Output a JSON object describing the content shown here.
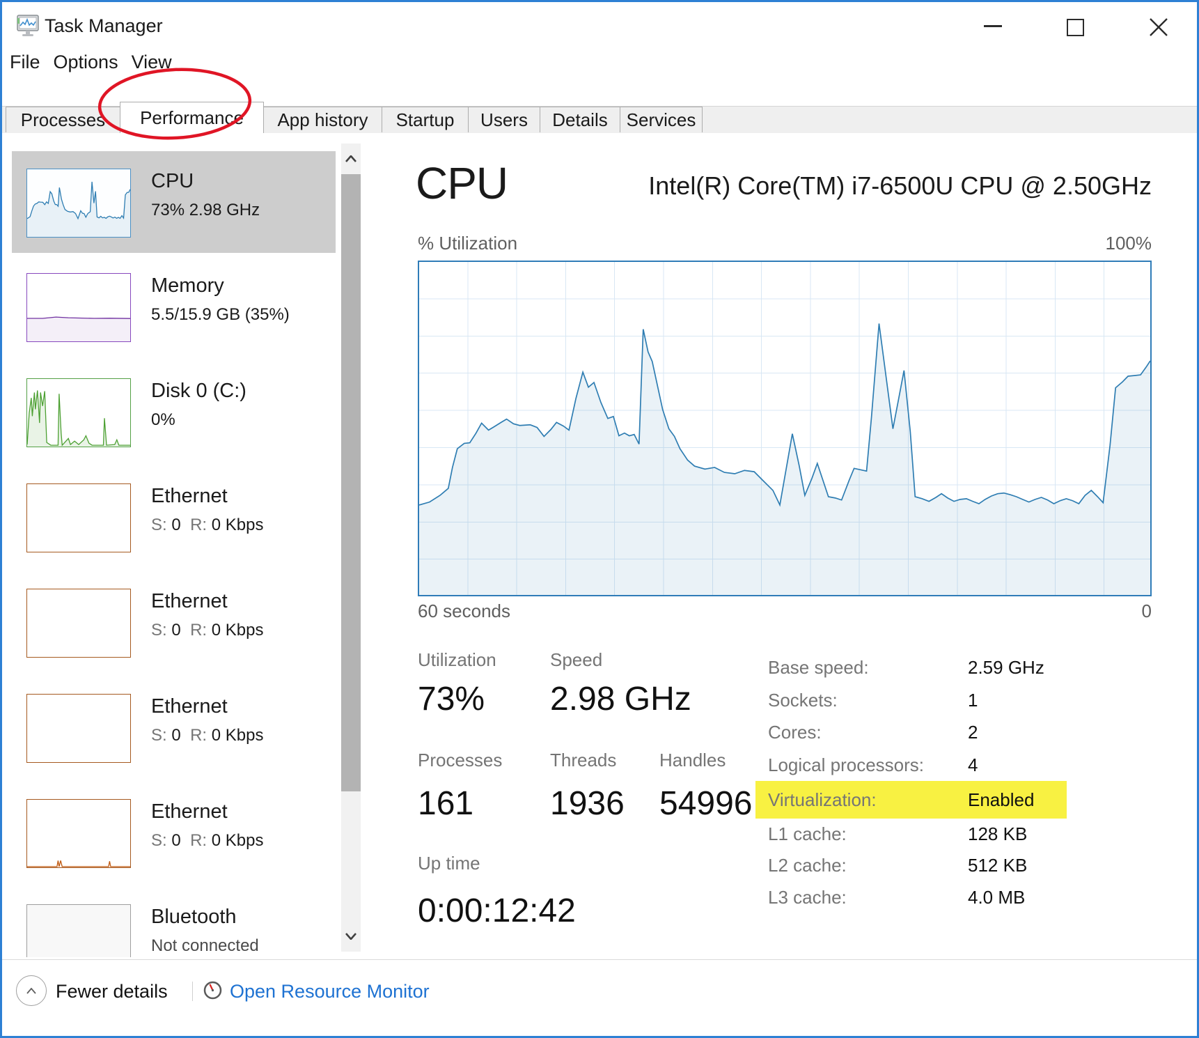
{
  "window": {
    "title": "Task Manager",
    "controls": {
      "minimize": "minimize",
      "maximize": "maximize",
      "close": "close"
    }
  },
  "menu": {
    "items": [
      "File",
      "Options",
      "View"
    ]
  },
  "tabs": {
    "active": "Performance",
    "items": [
      "Processes",
      "Performance",
      "App history",
      "Startup",
      "Users",
      "Details",
      "Services"
    ]
  },
  "sidebar": {
    "items": [
      {
        "id": "cpu",
        "title": "CPU",
        "subtitle": "73% 2.98 GHz",
        "selected": true
      },
      {
        "id": "memory",
        "title": "Memory",
        "subtitle": "5.5/15.9 GB (35%)",
        "selected": false
      },
      {
        "id": "disk",
        "title": "Disk 0 (C:)",
        "subtitle": "0%",
        "selected": false
      },
      {
        "id": "ethernet-1",
        "title": "Ethernet",
        "ss": "S:",
        "sv": "0",
        "rs": "R:",
        "rv": "0 Kbps",
        "selected": false
      },
      {
        "id": "ethernet-2",
        "title": "Ethernet",
        "ss": "S:",
        "sv": "0",
        "rs": "R:",
        "rv": "0 Kbps",
        "selected": false
      },
      {
        "id": "ethernet-3",
        "title": "Ethernet",
        "ss": "S:",
        "sv": "0",
        "rs": "R:",
        "rv": "0 Kbps",
        "selected": false
      },
      {
        "id": "ethernet-4",
        "title": "Ethernet",
        "ss": "S:",
        "sv": "0",
        "rs": "R:",
        "rv": "0 Kbps",
        "selected": false
      },
      {
        "id": "bluetooth",
        "title": "Bluetooth",
        "subtitle": "Not connected",
        "selected": false
      }
    ]
  },
  "main": {
    "title": "CPU",
    "subtitle": "Intel(R) Core(TM) i7-6500U CPU @ 2.50GHz",
    "y_axis_label": "% Utilization",
    "y_max_label": "100%",
    "x_left_label": "60 seconds",
    "x_right_label": "0",
    "stats_left": [
      {
        "label": "Utilization",
        "value": "73%"
      },
      {
        "label": "Speed",
        "value": "2.98 GHz"
      },
      {
        "label": "Processes",
        "value": "161"
      },
      {
        "label": "Threads",
        "value": "1936"
      },
      {
        "label": "Handles",
        "value": "54996"
      },
      {
        "label": "Up time",
        "value": "0:00:12:42"
      }
    ],
    "stats_right": [
      {
        "label": "Base speed:",
        "value": "2.59 GHz",
        "highlight": false
      },
      {
        "label": "Sockets:",
        "value": "1",
        "highlight": false
      },
      {
        "label": "Cores:",
        "value": "2",
        "highlight": false
      },
      {
        "label": "Logical processors:",
        "value": "4",
        "highlight": false
      },
      {
        "label": "Virtualization:",
        "value": "Enabled",
        "highlight": true
      },
      {
        "label": "L1 cache:",
        "value": "128 KB",
        "highlight": false
      },
      {
        "label": "L2 cache:",
        "value": "512 KB",
        "highlight": false
      },
      {
        "label": "L3 cache:",
        "value": "4.0 MB",
        "highlight": false
      }
    ]
  },
  "footer": {
    "fewer_details": "Fewer details",
    "open_resource_monitor": "Open Resource Monitor"
  },
  "colors": {
    "accent_blue": "#2e7db2",
    "grid_blue": "#d8e7f4",
    "chart_border": "#2f7cb8",
    "highlight_yellow": "#f8f142",
    "link_blue": "#1e72d2",
    "selected_gray": "#cdcdcd",
    "annotation_red": "#e01525",
    "memory_purple": "#7030a0",
    "disk_green": "#4ca032",
    "ethernet_brown": "#c05a11"
  },
  "chart_data": {
    "type": "area",
    "title": "CPU % Utilization history",
    "xlabel": "60 seconds (left) to 0 (right)",
    "ylabel": "% Utilization",
    "ylim": [
      0,
      100
    ],
    "grid": {
      "columns": 15,
      "rows": 9
    },
    "current_utilization_pct": 73,
    "points": [
      [
        0,
        27
      ],
      [
        15,
        27.9
      ],
      [
        30,
        29.9
      ],
      [
        42,
        32
      ],
      [
        48,
        38.3
      ],
      [
        55,
        43.9
      ],
      [
        65,
        45.5
      ],
      [
        73,
        45.7
      ],
      [
        82,
        48.6
      ],
      [
        90,
        51.6
      ],
      [
        100,
        49.5
      ],
      [
        108,
        50.5
      ],
      [
        118,
        51.8
      ],
      [
        126,
        52.8
      ],
      [
        136,
        51.4
      ],
      [
        145,
        50.9
      ],
      [
        160,
        51.1
      ],
      [
        170,
        50.3
      ],
      [
        180,
        47.6
      ],
      [
        190,
        49.7
      ],
      [
        198,
        51.8
      ],
      [
        208,
        50.7
      ],
      [
        216,
        49.5
      ],
      [
        226,
        59
      ],
      [
        236,
        66.9
      ],
      [
        244,
        62.4
      ],
      [
        252,
        63.8
      ],
      [
        262,
        57.8
      ],
      [
        272,
        53
      ],
      [
        280,
        53.6
      ],
      [
        288,
        47.8
      ],
      [
        296,
        48.6
      ],
      [
        303,
        47.8
      ],
      [
        310,
        48.2
      ],
      [
        317,
        45.3
      ],
      [
        323,
        79.8
      ],
      [
        330,
        73
      ],
      [
        336,
        70.1
      ],
      [
        351,
        55.7
      ],
      [
        360,
        49.9
      ],
      [
        368,
        47.6
      ],
      [
        376,
        43.9
      ],
      [
        387,
        40.5
      ],
      [
        397,
        38.7
      ],
      [
        412,
        37.8
      ],
      [
        426,
        38.3
      ],
      [
        440,
        36.8
      ],
      [
        455,
        36.4
      ],
      [
        469,
        37.4
      ],
      [
        483,
        37
      ],
      [
        495,
        34.5
      ],
      [
        510,
        31.4
      ],
      [
        520,
        27
      ],
      [
        538,
        48.4
      ],
      [
        548,
        38.7
      ],
      [
        556,
        29.9
      ],
      [
        566,
        34.9
      ],
      [
        574,
        39.5
      ],
      [
        582,
        34.5
      ],
      [
        590,
        29.5
      ],
      [
        600,
        29.1
      ],
      [
        609,
        28.5
      ],
      [
        620,
        34.5
      ],
      [
        627,
        38
      ],
      [
        645,
        37.2
      ],
      [
        652,
        53.2
      ],
      [
        663,
        81.5
      ],
      [
        673,
        65.7
      ],
      [
        683,
        49.9
      ],
      [
        691,
        58.6
      ],
      [
        699,
        67.4
      ],
      [
        708,
        49.1
      ],
      [
        715,
        29.5
      ],
      [
        725,
        28.9
      ],
      [
        735,
        28.1
      ],
      [
        745,
        29.3
      ],
      [
        753,
        30.4
      ],
      [
        762,
        29.1
      ],
      [
        771,
        28.1
      ],
      [
        780,
        28.7
      ],
      [
        789,
        28.9
      ],
      [
        798,
        28.1
      ],
      [
        807,
        27.4
      ],
      [
        816,
        28.7
      ],
      [
        825,
        29.7
      ],
      [
        834,
        30.4
      ],
      [
        843,
        30.6
      ],
      [
        852,
        30.1
      ],
      [
        861,
        29.5
      ],
      [
        870,
        28.7
      ],
      [
        879,
        27.9
      ],
      [
        888,
        28.7
      ],
      [
        897,
        29.3
      ],
      [
        906,
        28.5
      ],
      [
        915,
        27.4
      ],
      [
        924,
        28.3
      ],
      [
        933,
        28.9
      ],
      [
        942,
        28.3
      ],
      [
        951,
        27.4
      ],
      [
        960,
        29.9
      ],
      [
        969,
        31.4
      ],
      [
        978,
        29.5
      ],
      [
        986,
        27.7
      ],
      [
        996,
        44.9
      ],
      [
        1004,
        62.2
      ],
      [
        1014,
        64
      ],
      [
        1022,
        65.7
      ],
      [
        1032,
        65.9
      ],
      [
        1040,
        66.1
      ],
      [
        1048,
        68.4
      ],
      [
        1054,
        70.3
      ]
    ],
    "mini": {
      "memory": [
        [
          0,
          0.34
        ],
        [
          0.15,
          0.34
        ],
        [
          0.28,
          0.36
        ],
        [
          0.4,
          0.35
        ],
        [
          0.5,
          0.345
        ],
        [
          0.65,
          0.34
        ],
        [
          0.8,
          0.342
        ],
        [
          1,
          0.338
        ]
      ],
      "disk": [
        [
          0,
          0.03
        ],
        [
          0.02,
          0.5
        ],
        [
          0.04,
          0.72
        ],
        [
          0.05,
          0.45
        ],
        [
          0.07,
          0.8
        ],
        [
          0.08,
          0.55
        ],
        [
          0.1,
          0.83
        ],
        [
          0.12,
          0.35
        ],
        [
          0.13,
          0.8
        ],
        [
          0.15,
          0.6
        ],
        [
          0.17,
          0.82
        ],
        [
          0.19,
          0.06
        ],
        [
          0.23,
          0.02
        ],
        [
          0.3,
          0.02
        ],
        [
          0.31,
          0.78
        ],
        [
          0.33,
          0.2
        ],
        [
          0.34,
          0.02
        ],
        [
          0.4,
          0.12
        ],
        [
          0.42,
          0.03
        ],
        [
          0.46,
          0.08
        ],
        [
          0.5,
          0.03
        ],
        [
          0.55,
          0.1
        ],
        [
          0.57,
          0.16
        ],
        [
          0.6,
          0.05
        ],
        [
          0.63,
          0.02
        ],
        [
          0.74,
          0.02
        ],
        [
          0.75,
          0.42
        ],
        [
          0.77,
          0.02
        ],
        [
          0.85,
          0.03
        ],
        [
          0.87,
          0.1
        ],
        [
          0.89,
          0.02
        ],
        [
          1,
          0.02
        ]
      ],
      "ethernet4": [
        [
          0,
          0.01
        ],
        [
          0.29,
          0.01
        ],
        [
          0.3,
          0.1
        ],
        [
          0.31,
          0.01
        ],
        [
          0.325,
          0.1
        ],
        [
          0.34,
          0.01
        ],
        [
          0.79,
          0.01
        ],
        [
          0.8,
          0.09
        ],
        [
          0.81,
          0.01
        ],
        [
          1,
          0.01
        ]
      ]
    }
  }
}
